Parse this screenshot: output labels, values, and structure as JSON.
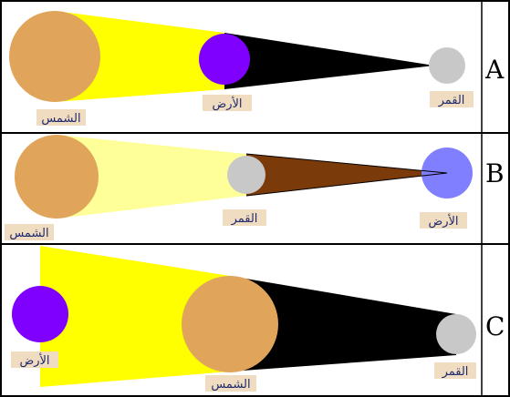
{
  "panels": [
    {
      "letter": "A",
      "labels": {
        "sun": "الشمس",
        "earth": "الأرض",
        "moon": "القمر"
      }
    },
    {
      "letter": "B",
      "labels": {
        "sun": "الشمس",
        "moon": "القمر",
        "earth": "الأرض"
      }
    },
    {
      "letter": "C",
      "labels": {
        "earth": "الأرض",
        "sun": "الشمس",
        "moon": "القمر"
      }
    }
  ],
  "colors": {
    "sun": "#e0a55a",
    "earth_A": "#8000ff",
    "earth_B": "#7f7fff",
    "earth_C": "#8000ff",
    "moon": "#c8c8c8",
    "light_A": "#ffff00",
    "light_B": "#ffff99",
    "light_C": "#ffff00",
    "shadow_A": "#000000",
    "shadow_B": "#7a3a0a",
    "shadow_C": "#000000",
    "label_bg": "#f0dcc0",
    "label_text": "#1e2a6e"
  }
}
